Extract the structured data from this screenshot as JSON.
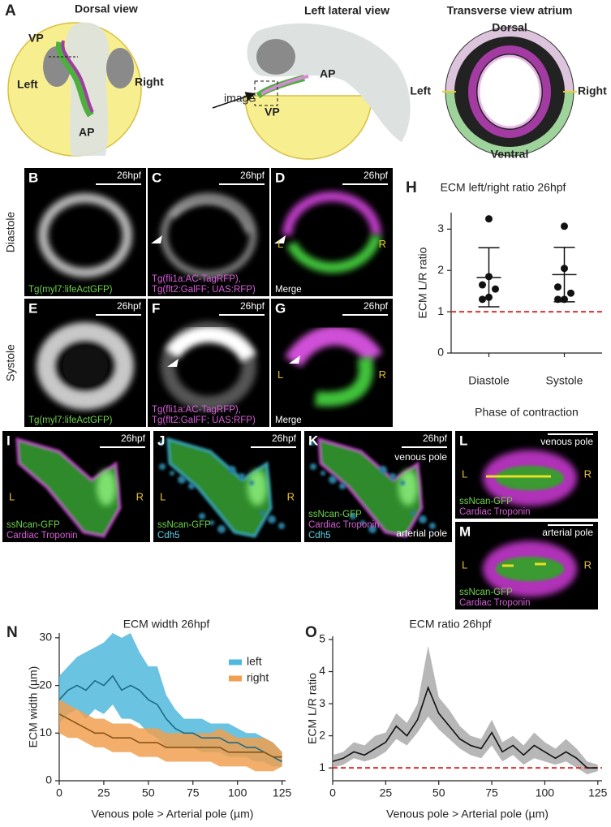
{
  "panel_a": {
    "label": "A",
    "dorsal": {
      "title": "Dorsal view",
      "vp": "VP",
      "left": "Left",
      "right": "Right",
      "ap": "AP"
    },
    "lateral": {
      "title": "Left lateral view",
      "image": "image",
      "ap": "AP",
      "vp": "VP"
    },
    "transverse": {
      "title": "Transverse view atrium",
      "dorsal": "Dorsal",
      "left": "Left",
      "right": "Right",
      "ventral": "Ventral"
    }
  },
  "row_labels": [
    "Diastole",
    "Systole"
  ],
  "images": [
    {
      "label": "B",
      "time": "26hpf",
      "caption": [
        {
          "text": "Tg(myl7:lifeActGFP)",
          "color": "#6fd44a"
        }
      ]
    },
    {
      "label": "C",
      "time": "26hpf",
      "caption": [
        {
          "text": "Tg(fli1a:AC-TagRFP),",
          "color": "#d65fd6"
        },
        {
          "text": "Tg(flt2:GalFF; UAS:RFP)",
          "color": "#d65fd6"
        }
      ]
    },
    {
      "label": "D",
      "time": "26hpf",
      "left": "L",
      "right": "R",
      "caption": [
        {
          "text": "Merge",
          "color": "#ffffff"
        }
      ]
    },
    {
      "label": "E",
      "time": "26hpf",
      "caption": [
        {
          "text": "Tg(myl7:lifeActGFP)",
          "color": "#6fd44a"
        }
      ]
    },
    {
      "label": "F",
      "time": "26hpf",
      "caption": [
        {
          "text": "Tg(fli1a:AC-TagRFP),",
          "color": "#d65fd6"
        },
        {
          "text": "Tg(flt2:GalFF; UAS:RFP)",
          "color": "#d65fd6"
        }
      ]
    },
    {
      "label": "G",
      "time": "26hpf",
      "left": "L",
      "right": "R",
      "caption": [
        {
          "text": "Merge",
          "color": "#ffffff"
        }
      ]
    }
  ],
  "images2": [
    {
      "label": "I",
      "time": "26hpf",
      "left": "L",
      "right": "R",
      "caption": [
        {
          "text": "ssNcan-GFP",
          "color": "#6fd44a"
        },
        {
          "text": "Cardiac Troponin",
          "color": "#d65fd6"
        }
      ]
    },
    {
      "label": "J",
      "time": "26hpf",
      "left": "L",
      "right": "R",
      "caption": [
        {
          "text": "ssNcan-GFP",
          "color": "#6fd44a"
        },
        {
          "text": "Cdh5",
          "color": "#5fd0e8"
        }
      ]
    },
    {
      "label": "K",
      "time": "26hpf",
      "pole_top": "venous pole",
      "pole_bottom": "arterial pole",
      "caption": [
        {
          "text": "ssNcan-GFP",
          "color": "#6fd44a"
        },
        {
          "text": "Cardiac Troponin",
          "color": "#d65fd6"
        },
        {
          "text": "Cdh5",
          "color": "#5fd0e8"
        }
      ]
    },
    {
      "label": "L",
      "pole_top": "venous pole",
      "left": "L",
      "right": "R",
      "caption": [
        {
          "text": "ssNcan-GFP",
          "color": "#6fd44a"
        },
        {
          "text": "Cardiac Troponin",
          "color": "#d65fd6"
        }
      ]
    },
    {
      "label": "M",
      "pole_top": "arterial pole",
      "left": "L",
      "right": "R",
      "caption": [
        {
          "text": "ssNcan-GFP",
          "color": "#6fd44a"
        },
        {
          "text": "Cardiac Troponin",
          "color": "#d65fd6"
        }
      ]
    }
  ],
  "charts": {
    "h": {
      "type": "scatter",
      "label": "H",
      "title": "ECM left/right ratio 26hpf",
      "ylabel": "ECM L/R ratio",
      "xlabel": "Phase of contraction",
      "ylim": [
        0,
        3.4
      ],
      "yticks": [
        0,
        1,
        2,
        3
      ],
      "reference_line": 1,
      "reference_color": "#e03030",
      "groups": [
        {
          "name": "Diastole",
          "points": [
            3.25,
            1.85,
            1.65,
            1.55,
            1.35,
            1.3
          ],
          "mean": 1.83,
          "upper": 2.55,
          "lower": 1.12
        },
        {
          "name": "Systole",
          "points": [
            3.07,
            2.05,
            1.6,
            1.45,
            1.3,
            1.3
          ],
          "mean": 1.9,
          "upper": 2.56,
          "lower": 1.24
        }
      ]
    },
    "n": {
      "type": "line",
      "label": "N",
      "title": "ECM width 26hpf",
      "ylabel": "ECM width (µm)",
      "xlabel": "Venous pole > Arterial pole (µm)",
      "xlim": [
        0,
        127
      ],
      "ylim": [
        0,
        31
      ],
      "xticks": [
        0,
        25,
        50,
        75,
        100,
        125
      ],
      "yticks": [
        0,
        10,
        20,
        30
      ],
      "x": [
        0,
        5,
        10,
        15,
        20,
        25,
        30,
        35,
        40,
        45,
        50,
        55,
        60,
        65,
        70,
        75,
        80,
        85,
        90,
        95,
        100,
        105,
        110,
        115,
        120,
        125
      ],
      "series": [
        {
          "name": "left",
          "color": "#4fb8dc",
          "line_color": "#1d6b86",
          "values": [
            17,
            19,
            20,
            19,
            21,
            20,
            22,
            19,
            20,
            19,
            17,
            16,
            13,
            11,
            10,
            10,
            9,
            9,
            9,
            8,
            8,
            7,
            7,
            6,
            5,
            4
          ],
          "upper": [
            22,
            24,
            26,
            27,
            28,
            29,
            31,
            30,
            31,
            27,
            24,
            24,
            18,
            15,
            13,
            13,
            13,
            12,
            12,
            12,
            11,
            10,
            10,
            9,
            8,
            6
          ],
          "lower": [
            12,
            14,
            15,
            13,
            15,
            14,
            16,
            13,
            13,
            12,
            10,
            9,
            7,
            7,
            7,
            7,
            6,
            6,
            6,
            5,
            5,
            5,
            4,
            4,
            3,
            3
          ]
        },
        {
          "name": "right",
          "color": "#f0a050",
          "line_color": "#8a5418",
          "values": [
            14,
            13,
            12,
            11,
            10,
            10,
            9,
            9,
            9,
            8,
            8,
            8,
            7,
            7,
            7,
            7,
            7,
            7,
            7,
            6,
            6,
            6,
            6,
            6,
            5,
            5
          ],
          "upper": [
            17,
            16,
            15,
            14,
            13,
            13,
            12,
            12,
            12,
            11,
            11,
            11,
            10,
            10,
            10,
            10,
            10,
            10,
            11,
            10,
            9,
            9,
            9,
            9,
            8,
            6
          ],
          "lower": [
            10,
            9,
            9,
            8,
            7,
            7,
            6,
            6,
            6,
            5,
            5,
            5,
            4,
            4,
            4,
            4,
            4,
            4,
            3,
            3,
            3,
            3,
            2,
            2,
            2,
            3
          ]
        }
      ]
    },
    "o": {
      "type": "line",
      "label": "O",
      "title": "ECM ratio 26hpf",
      "ylabel": "ECM L/R ratio",
      "xlabel": "Venous pole > Arterial pole (µm)",
      "xlim": [
        0,
        127
      ],
      "ylim": [
        0.6,
        5.1
      ],
      "xticks": [
        0,
        25,
        50,
        75,
        100,
        125
      ],
      "yticks": [
        1,
        2,
        3,
        4,
        5
      ],
      "reference_line": 1,
      "reference_color": "#e03030",
      "x": [
        0,
        5,
        10,
        15,
        20,
        25,
        30,
        35,
        40,
        45,
        50,
        55,
        60,
        65,
        70,
        75,
        80,
        85,
        90,
        95,
        100,
        105,
        110,
        115,
        120,
        125
      ],
      "series": [
        {
          "color": "#aaaaaa",
          "line_color": "#111111",
          "values": [
            1.2,
            1.3,
            1.5,
            1.4,
            1.6,
            1.8,
            2.3,
            2.0,
            2.5,
            3.5,
            2.7,
            2.3,
            1.9,
            1.7,
            1.6,
            2.1,
            1.5,
            1.7,
            1.4,
            1.7,
            1.5,
            1.3,
            1.5,
            1.3,
            1.0,
            1.0
          ],
          "upper": [
            1.4,
            1.5,
            1.8,
            1.7,
            2.0,
            2.1,
            2.7,
            2.4,
            3.0,
            4.8,
            3.2,
            2.8,
            2.3,
            2.0,
            1.9,
            2.5,
            1.8,
            2.0,
            1.7,
            2.1,
            1.8,
            1.6,
            1.9,
            1.6,
            1.2,
            1.1
          ],
          "lower": [
            1.0,
            1.1,
            1.3,
            1.2,
            1.3,
            1.5,
            1.9,
            1.7,
            2.1,
            2.6,
            2.2,
            1.9,
            1.6,
            1.4,
            1.3,
            1.7,
            1.2,
            1.4,
            1.1,
            1.3,
            1.2,
            1.1,
            1.2,
            1.0,
            0.8,
            0.9
          ]
        }
      ]
    }
  }
}
